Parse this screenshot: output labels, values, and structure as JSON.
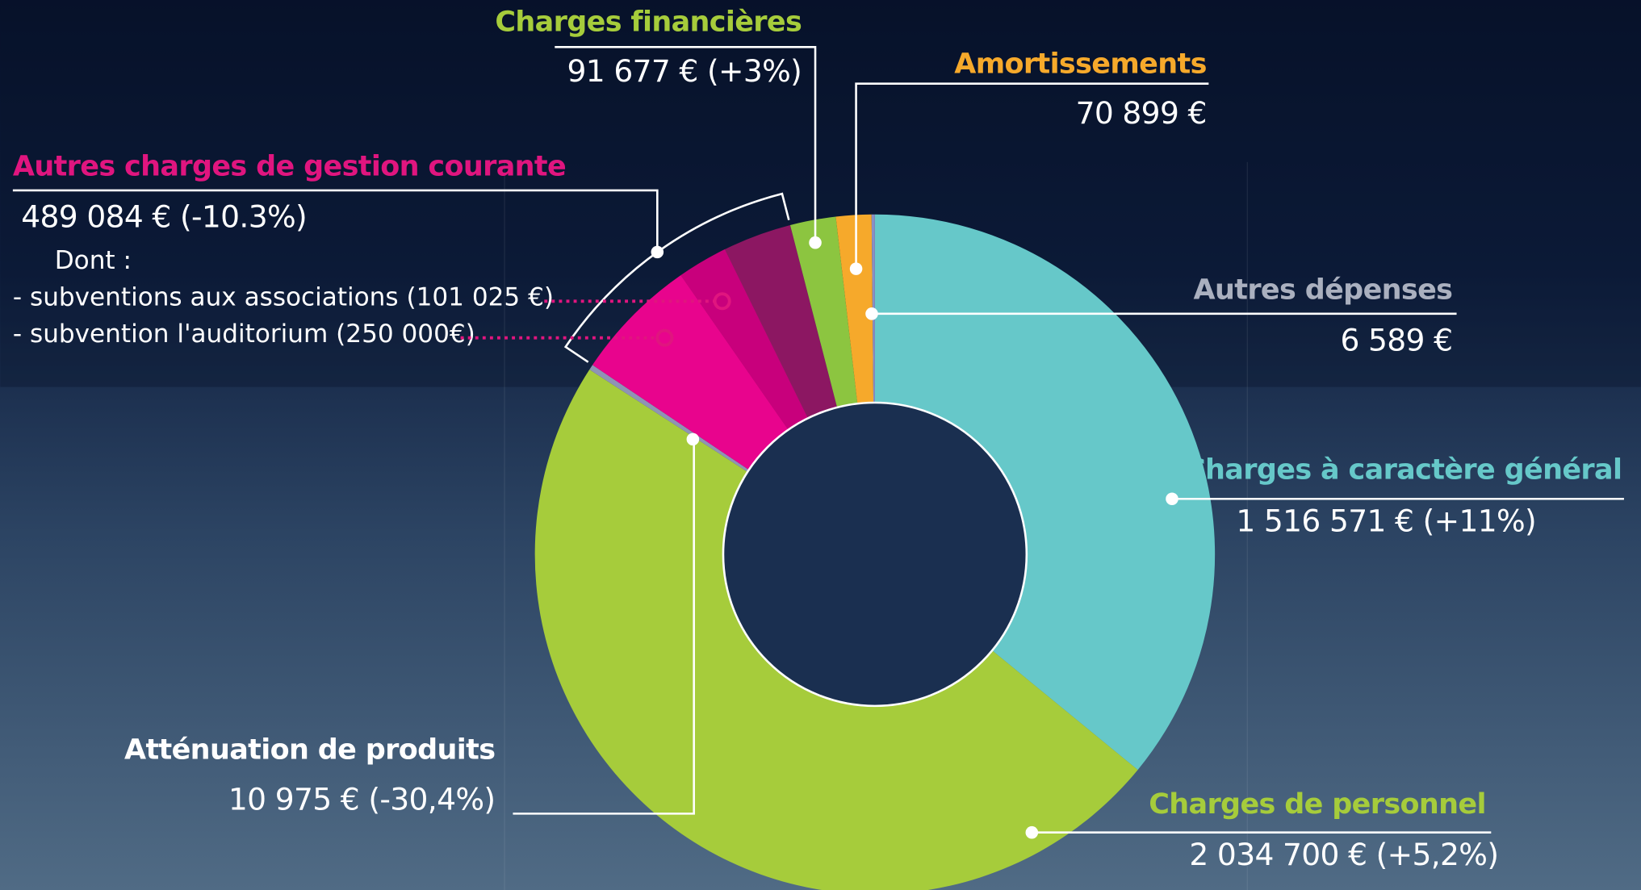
{
  "chart_data": {
    "type": "pie",
    "donut": true,
    "categories": [
      "Charges à caractère général",
      "Charges de personnel",
      "Atténuation de produits",
      "Autres charges de gestion courante",
      "Charges financières",
      "Amortissements",
      "Autres dépenses"
    ],
    "values": [
      1516571,
      2034700,
      10975,
      489084,
      91677,
      70899,
      6589
    ],
    "value_labels": [
      "1 516 571 € (+11%)",
      "2 034 700 € (+5,2%)",
      "10 975 € (-30,4%)",
      "489 084 € (-10.3%)",
      "91 677 € (+3%)",
      "70 899 €",
      "6 589 €"
    ],
    "colors": [
      "#66c8c9",
      "#a6cc3b",
      "#8f93b5",
      "#8c1762",
      "#8cc540",
      "#f6a92b",
      "#8a8fc4"
    ],
    "label_colors": [
      "#66c8c9",
      "#a6cc3b",
      "#ffffff",
      "#e0157f",
      "#a6cc3b",
      "#f6a92b",
      "#aab0bf"
    ],
    "breakdown": {
      "parent": 3,
      "title": "Dont :",
      "items": [
        {
          "label": "- subventions aux associations (101 025 €)",
          "value": 101025,
          "color": "#c8007c"
        },
        {
          "label": "- subvention l'auditorium (250 000€)",
          "value": 250000,
          "color": "#e8048d"
        }
      ]
    }
  }
}
